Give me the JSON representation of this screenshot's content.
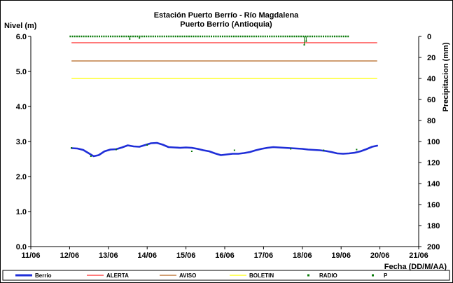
{
  "chart_data": {
    "type": "line",
    "title": "Estación Puerto Berrío - Río Magdalena",
    "subtitle": "Puerto Berrio (Antioquia)",
    "ylabel": "Nivel (m)",
    "y2label": "Precipitacion (mm)",
    "xlabel": "Fecha (DD/M/AA)",
    "x_ticks": [
      "11/06",
      "12/06",
      "13/06",
      "14/06",
      "15/06",
      "16/06",
      "17/06",
      "18/06",
      "19/06",
      "20/06",
      "21/06"
    ],
    "x_range": [
      0,
      10
    ],
    "ylim": [
      0,
      6
    ],
    "y_ticks": [
      "0.0",
      "1.0",
      "2.0",
      "3.0",
      "4.0",
      "5.0",
      "6.0"
    ],
    "y2lim": [
      200,
      0
    ],
    "y2_ticks": [
      "0",
      "20",
      "40",
      "60",
      "80",
      "100",
      "120",
      "140",
      "160",
      "180",
      "200"
    ],
    "grid": false,
    "legend_position": "bottom",
    "series": [
      {
        "name": "Berrio",
        "color": "#1f2ed8",
        "style": "line",
        "points": [
          [
            1.05,
            2.81
          ],
          [
            1.2,
            2.8
          ],
          [
            1.35,
            2.76
          ],
          [
            1.5,
            2.66
          ],
          [
            1.62,
            2.58
          ],
          [
            1.75,
            2.61
          ],
          [
            1.9,
            2.72
          ],
          [
            2.05,
            2.77
          ],
          [
            2.2,
            2.78
          ],
          [
            2.35,
            2.83
          ],
          [
            2.5,
            2.89
          ],
          [
            2.65,
            2.86
          ],
          [
            2.8,
            2.85
          ],
          [
            2.95,
            2.9
          ],
          [
            3.1,
            2.95
          ],
          [
            3.25,
            2.96
          ],
          [
            3.4,
            2.91
          ],
          [
            3.55,
            2.84
          ],
          [
            3.7,
            2.83
          ],
          [
            3.85,
            2.82
          ],
          [
            4.0,
            2.83
          ],
          [
            4.15,
            2.82
          ],
          [
            4.3,
            2.79
          ],
          [
            4.45,
            2.75
          ],
          [
            4.6,
            2.72
          ],
          [
            4.75,
            2.66
          ],
          [
            4.9,
            2.61
          ],
          [
            5.05,
            2.63
          ],
          [
            5.2,
            2.65
          ],
          [
            5.35,
            2.65
          ],
          [
            5.5,
            2.67
          ],
          [
            5.65,
            2.7
          ],
          [
            5.8,
            2.75
          ],
          [
            5.95,
            2.79
          ],
          [
            6.1,
            2.82
          ],
          [
            6.25,
            2.84
          ],
          [
            6.4,
            2.83
          ],
          [
            6.55,
            2.82
          ],
          [
            6.7,
            2.81
          ],
          [
            6.85,
            2.8
          ],
          [
            7.0,
            2.79
          ],
          [
            7.15,
            2.77
          ],
          [
            7.3,
            2.76
          ],
          [
            7.45,
            2.75
          ],
          [
            7.6,
            2.73
          ],
          [
            7.75,
            2.7
          ],
          [
            7.9,
            2.66
          ],
          [
            8.05,
            2.65
          ],
          [
            8.2,
            2.66
          ],
          [
            8.35,
            2.68
          ],
          [
            8.5,
            2.72
          ],
          [
            8.65,
            2.78
          ],
          [
            8.8,
            2.85
          ],
          [
            8.93,
            2.88
          ]
        ]
      },
      {
        "name": "ALERTA",
        "color": "#ff2a2a",
        "style": "hline",
        "value": 5.82,
        "x_from": 1.05,
        "x_to": 8.93
      },
      {
        "name": "AVISO",
        "color": "#b5651d",
        "style": "hline",
        "value": 5.3,
        "x_from": 1.05,
        "x_to": 8.93
      },
      {
        "name": "BOLETIN",
        "color": "#ffff00",
        "style": "hline",
        "value": 4.8,
        "x_from": 1.05,
        "x_to": 8.93
      },
      {
        "name": "RADIO",
        "color": "#0a7a0a",
        "style": "dots",
        "points": [
          [
            1.05,
            2.82
          ],
          [
            1.55,
            2.58
          ],
          [
            2.2,
            2.77
          ],
          [
            3.0,
            2.9
          ],
          [
            4.15,
            2.72
          ],
          [
            5.25,
            2.75
          ],
          [
            6.7,
            2.79
          ],
          [
            7.55,
            2.75
          ],
          [
            8.4,
            2.77
          ]
        ]
      },
      {
        "name": "P",
        "color": "#0a7a0a",
        "style": "precip",
        "axis": "secondary",
        "x_from": 1.0,
        "x_to": 8.2,
        "base": 0,
        "spikes": [
          [
            2.55,
            2.5
          ],
          [
            2.8,
            1.5
          ],
          [
            7.05,
            8.0
          ],
          [
            7.1,
            4.5
          ]
        ]
      }
    ]
  }
}
